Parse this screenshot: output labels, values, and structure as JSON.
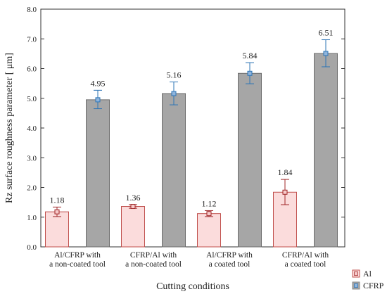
{
  "chart_data": {
    "type": "bar",
    "xlabel": "Cutting conditions",
    "ylabel": "Rz surface roughness parameter [ μm]",
    "ylim": [
      0,
      8
    ],
    "yticks": [
      "0.0",
      "1.0",
      "2.0",
      "3.0",
      "4.0",
      "5.0",
      "6.0",
      "7.0",
      "8.0"
    ],
    "categories": [
      [
        "Al/CFRP with",
        "a non-coated tool"
      ],
      [
        "CFRP/Al with",
        "a non-coated tool"
      ],
      [
        "Al/CFRP with",
        "a coated tool"
      ],
      [
        "CFRP/Al with",
        "a coated tool"
      ]
    ],
    "series": [
      {
        "name": "Al",
        "color_fill": "#fbdcdc",
        "color_edge": "#c0504d",
        "values": [
          1.18,
          1.36,
          1.12,
          1.84
        ],
        "labels": [
          "1.18",
          "1.36",
          "1.12",
          "1.84"
        ],
        "error_low": [
          1.02,
          1.3,
          1.02,
          1.42
        ],
        "error_high": [
          1.34,
          1.42,
          1.22,
          2.27
        ]
      },
      {
        "name": "CFRP",
        "color_fill": "#a6a6a6",
        "color_edge": "#6e6e6e",
        "color_marker": "#2e75b6",
        "values": [
          4.95,
          5.16,
          5.84,
          6.51
        ],
        "labels": [
          "4.95",
          "5.16",
          "5.84",
          "6.51"
        ],
        "error_low": [
          4.65,
          4.78,
          5.49,
          6.06
        ],
        "error_high": [
          5.27,
          5.55,
          6.2,
          6.97
        ]
      }
    ],
    "legend_position": "bottom-right",
    "grid": false
  }
}
